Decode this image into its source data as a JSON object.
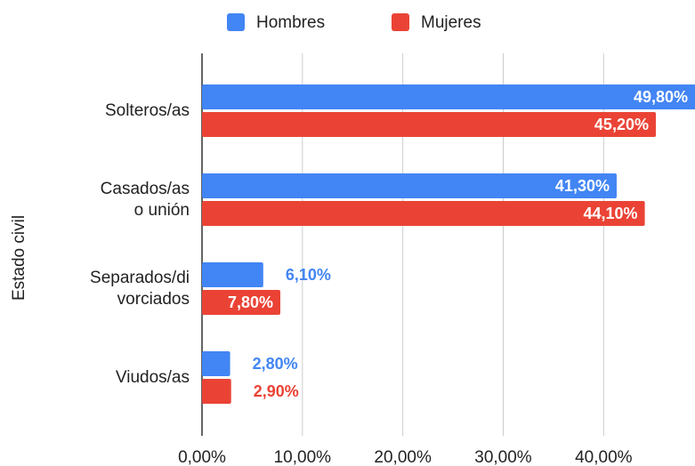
{
  "chart_data": {
    "type": "hbar",
    "ylabel": "Estado civil",
    "categories": [
      "Solteros/as",
      "Casados/as\no unión",
      "Separados/di\nvorciados",
      "Viudos/as"
    ],
    "series": [
      {
        "name": "Hombres",
        "color": "#4285f4",
        "values": [
          49.8,
          41.3,
          6.1,
          2.8
        ],
        "value_labels": [
          "49,80%",
          "41,30%",
          "6,10%",
          "2,80%"
        ]
      },
      {
        "name": "Mujeres",
        "color": "#ea4335",
        "values": [
          45.2,
          44.1,
          7.8,
          2.9
        ],
        "value_labels": [
          "45,20%",
          "44,10%",
          "7,80%",
          "2,90%"
        ]
      }
    ],
    "xlim": [
      0,
      49.1
    ],
    "xticks": [
      {
        "value": 0,
        "label": "0,00%"
      },
      {
        "value": 10,
        "label": "10,00%"
      },
      {
        "value": 20,
        "label": "20,00%"
      },
      {
        "value": 30,
        "label": "30,00%"
      },
      {
        "value": 40,
        "label": "40,00%"
      }
    ],
    "grid": true,
    "legend": "top"
  }
}
